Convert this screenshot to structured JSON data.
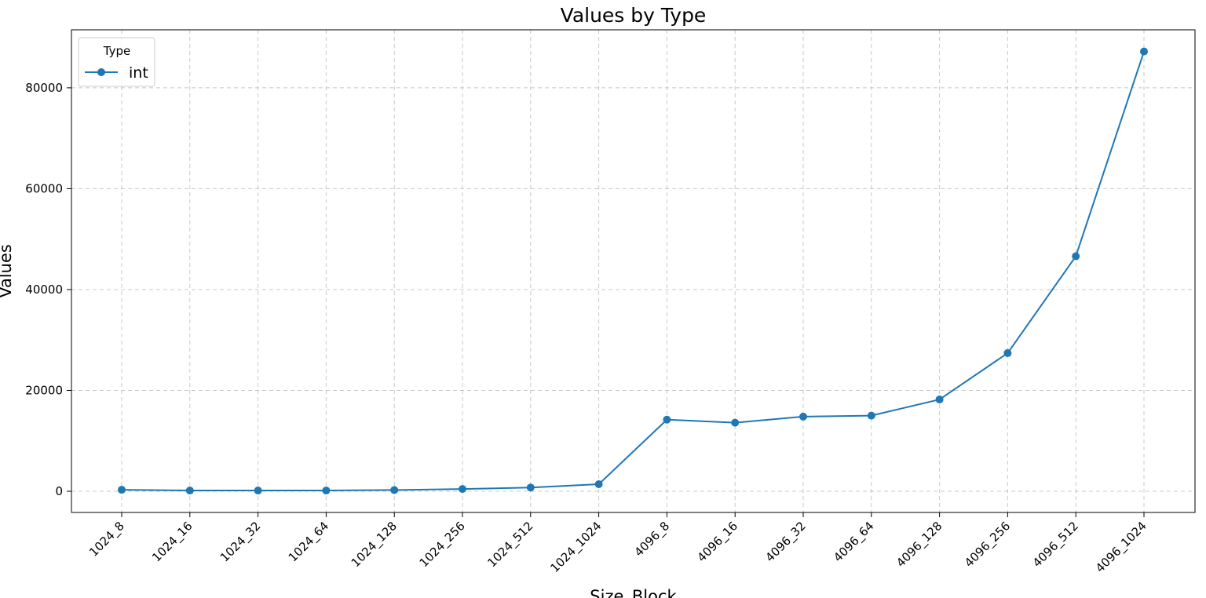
{
  "chart_data": {
    "type": "line",
    "title": "Values by Type",
    "xlabel": "Size_Block",
    "ylabel": "Values",
    "categories": [
      "1024_8",
      "1024_16",
      "1024_32",
      "1024_64",
      "1024_128",
      "1024_256",
      "1024_512",
      "1024_1024",
      "4096_8",
      "4096_16",
      "4096_32",
      "4096_64",
      "4096_128",
      "4096_256",
      "4096_512",
      "4096_1024"
    ],
    "series": [
      {
        "name": "int",
        "color": "#1f77b4",
        "values": [
          300,
          150,
          150,
          150,
          250,
          450,
          750,
          1400,
          14200,
          13600,
          14800,
          15000,
          18200,
          27400,
          46600,
          87200
        ]
      }
    ],
    "yticks": [
      0,
      20000,
      40000,
      60000,
      80000
    ],
    "ylim": [
      -4200,
      91500
    ],
    "grid": true,
    "legend": {
      "title": "Type",
      "placement": "top-left"
    }
  }
}
